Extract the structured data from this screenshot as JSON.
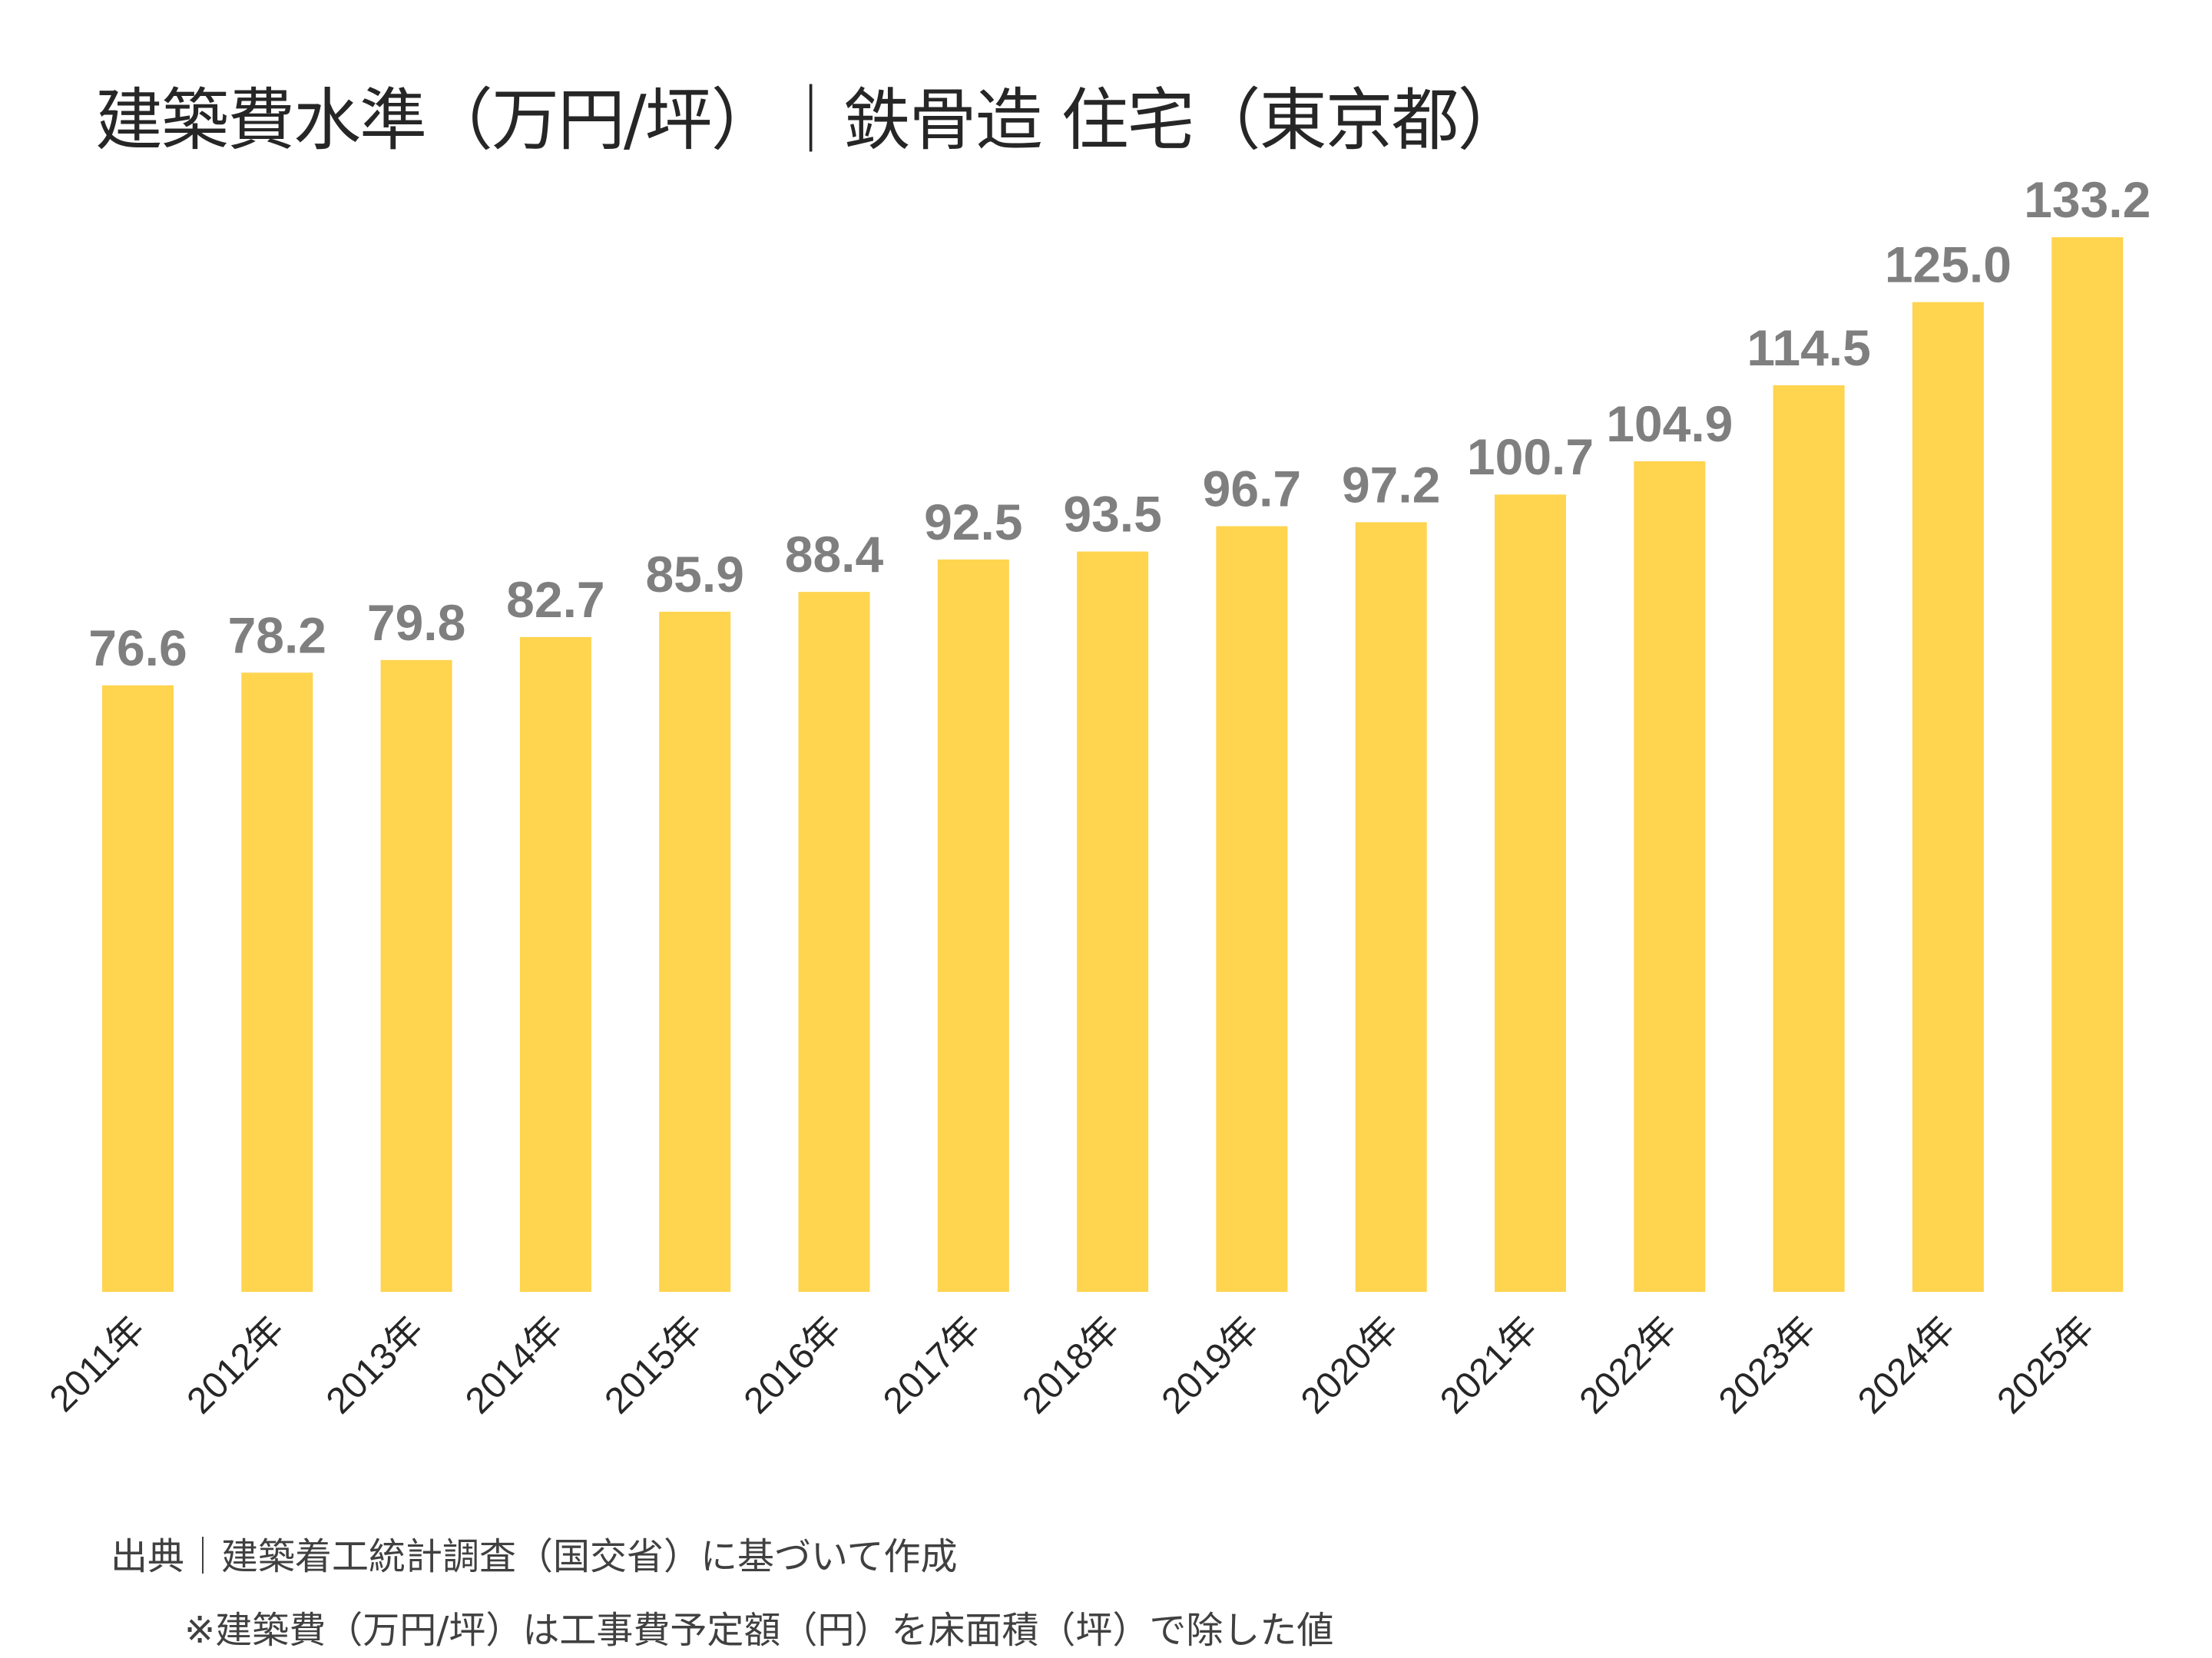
{
  "chart_data": {
    "type": "bar",
    "title": "建築費水準（万円/坪）｜鉄骨造 住宅（東京都）",
    "categories": [
      "2011年",
      "2012年",
      "2013年",
      "2014年",
      "2015年",
      "2016年",
      "2017年",
      "2018年",
      "2019年",
      "2020年",
      "2021年",
      "2022年",
      "2023年",
      "2024年",
      "2025年"
    ],
    "values": [
      76.6,
      78.2,
      79.8,
      82.7,
      85.9,
      88.4,
      92.5,
      93.5,
      96.7,
      97.2,
      100.7,
      104.9,
      114.5,
      125.0,
      133.2
    ],
    "ylim": [
      0,
      133.2
    ],
    "grid": false,
    "legend": "none",
    "colors": {
      "bar": "#FFD44F",
      "data_label": "#7F7F7F",
      "text": "#262626"
    }
  },
  "footer": {
    "source": "出典｜建築着工統計調査（国交省）に基づいて作成",
    "note": "※建築費（万円/坪）は工事費予定額（円）を床面積（坪）で除した値"
  }
}
